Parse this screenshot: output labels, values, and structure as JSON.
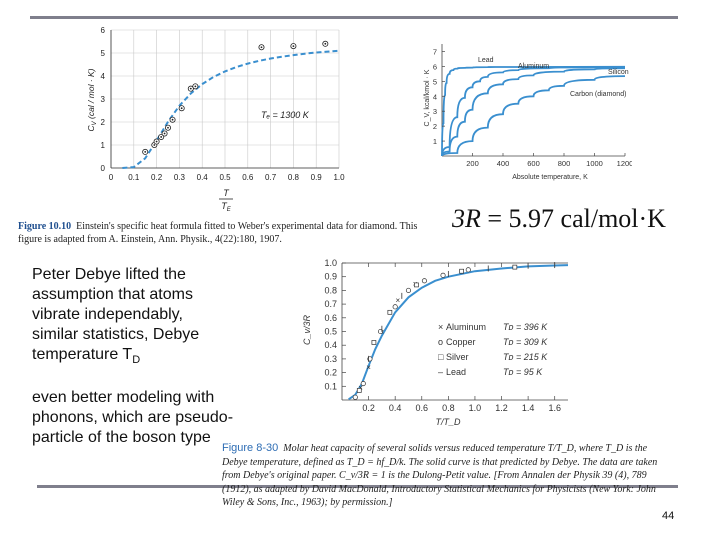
{
  "chart_data": [
    {
      "type": "scatter",
      "id": "einstein",
      "xlabel": "T / T_E",
      "ylabel": "C_V (cal / mol · K)",
      "xlim": [
        0,
        1.0
      ],
      "ylim": [
        0,
        6
      ],
      "xticks": [
        "0",
        "0.1",
        "0.2",
        "0.3",
        "0.4",
        "0.5",
        "0.6",
        "0.7",
        "0.8",
        "0.9",
        "1.0"
      ],
      "yticks": [
        "0",
        "1",
        "2",
        "3",
        "4",
        "5",
        "6"
      ],
      "grid": true,
      "annotation": "T_E = 1300 K",
      "series": [
        {
          "kind": "points",
          "x": [
            0.15,
            0.19,
            0.2,
            0.22,
            0.235,
            0.25,
            0.27,
            0.31,
            0.35,
            0.37,
            0.66,
            0.8,
            0.94
          ],
          "y": [
            0.7,
            1.0,
            1.15,
            1.35,
            1.5,
            1.75,
            2.1,
            2.6,
            3.45,
            3.55,
            5.25,
            5.3,
            5.4
          ]
        },
        {
          "kind": "curve",
          "x": [
            0.05,
            0.1,
            0.15,
            0.2,
            0.25,
            0.3,
            0.35,
            0.4,
            0.45,
            0.5,
            0.55,
            0.6,
            0.65,
            0.7,
            0.75,
            0.8,
            0.85,
            0.9,
            0.95,
            1.0
          ],
          "y": [
            0.0,
            0.04,
            0.42,
            1.19,
            2.01,
            2.71,
            3.24,
            3.65,
            3.96,
            4.2,
            4.39,
            4.54,
            4.66,
            4.76,
            4.84,
            4.91,
            4.97,
            5.02,
            5.06,
            5.1
          ]
        }
      ]
    },
    {
      "type": "line",
      "id": "elements",
      "xlabel": "Absolute temperature, K",
      "ylabel": "C_V, kcal/kmol · K",
      "xlim": [
        0,
        1200
      ],
      "ylim": [
        0,
        7.5
      ],
      "xticks": [
        "200",
        "400",
        "600",
        "800",
        "1000",
        "1200"
      ],
      "yticks": [
        "1",
        "2",
        "3",
        "4",
        "5",
        "6",
        "7"
      ],
      "series": [
        {
          "name": "Lead",
          "x": [
            0,
            10,
            20,
            30,
            50,
            75,
            100,
            150,
            200,
            300,
            500,
            1200
          ],
          "y": [
            0,
            2.2,
            4.1,
            4.9,
            5.5,
            5.75,
            5.85,
            5.9,
            5.92,
            5.95,
            5.96,
            5.97
          ]
        },
        {
          "name": "Aluminum",
          "x": [
            0,
            50,
            100,
            150,
            200,
            250,
            300,
            400,
            500,
            700,
            1000,
            1200
          ],
          "y": [
            0,
            0.6,
            2.6,
            3.9,
            4.6,
            5.0,
            5.3,
            5.6,
            5.75,
            5.88,
            5.94,
            5.96
          ]
        },
        {
          "name": "Silicon",
          "x": [
            0,
            50,
            100,
            150,
            200,
            300,
            400,
            500,
            600,
            800,
            1000,
            1200
          ],
          "y": [
            0,
            0.3,
            1.3,
            2.3,
            3.1,
            4.2,
            4.8,
            5.15,
            5.4,
            5.65,
            5.8,
            5.88
          ]
        },
        {
          "name": "Carbon (diamond)",
          "x": [
            0,
            100,
            200,
            300,
            400,
            500,
            600,
            700,
            800,
            1000,
            1200
          ],
          "y": [
            0,
            0.2,
            1.0,
            1.9,
            2.8,
            3.5,
            4.0,
            4.4,
            4.7,
            5.1,
            5.35
          ]
        }
      ]
    },
    {
      "type": "scatter",
      "id": "debye",
      "xlabel": "T/T_D",
      "ylabel": "C_v/3R",
      "xlim": [
        0,
        1.7
      ],
      "ylim": [
        0,
        1.0
      ],
      "xticks": [
        "0.2",
        "0.4",
        "0.6",
        "0.8",
        "1.0",
        "1.2",
        "1.4",
        "1.6"
      ],
      "yticks": [
        "0.1",
        "0.2",
        "0.3",
        "0.4",
        "0.5",
        "0.6",
        "0.7",
        "0.8",
        "0.9",
        "1.0"
      ],
      "series": [
        {
          "name": "Aluminum",
          "marker": "×",
          "T_D": "T_D = 396 K",
          "x": [
            0.14,
            0.2,
            0.3,
            0.42,
            0.55
          ],
          "y": [
            0.09,
            0.24,
            0.5,
            0.73,
            0.85
          ]
        },
        {
          "name": "Copper",
          "marker": "o",
          "T_D": "T_D = 309 K",
          "x": [
            0.1,
            0.16,
            0.21,
            0.29,
            0.4,
            0.5,
            0.62,
            0.76,
            0.95
          ],
          "y": [
            0.02,
            0.12,
            0.3,
            0.5,
            0.68,
            0.8,
            0.87,
            0.91,
            0.95
          ]
        },
        {
          "name": "Silver",
          "marker": "□",
          "T_D": "T_D = 215 K",
          "x": [
            0.13,
            0.24,
            0.36,
            0.56,
            0.9,
            1.3
          ],
          "y": [
            0.07,
            0.42,
            0.64,
            0.84,
            0.94,
            0.97
          ]
        },
        {
          "name": "Lead",
          "marker": "–",
          "T_D": "T_D = 95 K",
          "x": [
            0.2,
            0.3,
            0.45,
            0.8,
            1.1,
            1.4,
            1.6
          ],
          "y": [
            0.3,
            0.52,
            0.76,
            0.92,
            0.96,
            0.98,
            0.985
          ]
        },
        {
          "name": "curve",
          "kind": "curve",
          "x": [
            0.05,
            0.1,
            0.15,
            0.2,
            0.25,
            0.3,
            0.4,
            0.5,
            0.6,
            0.7,
            0.8,
            1.0,
            1.2,
            1.4,
            1.6,
            1.7
          ],
          "y": [
            0.005,
            0.038,
            0.12,
            0.25,
            0.37,
            0.47,
            0.64,
            0.75,
            0.82,
            0.87,
            0.9,
            0.94,
            0.96,
            0.975,
            0.982,
            0.985
          ]
        }
      ]
    }
  ],
  "text": {
    "fig_einstein_label": "Figure 10.10",
    "fig_einstein_caption": "Einstein's specific heat formula fitted to Weber's experimental data for diamond. This figure is adapted from A. Einstein, Ann. Physik., 4(22):180, 1907.",
    "formula": "3R = 5.97 cal/mol·K",
    "body1": "Peter Debye lifted the assumption that atoms vibrate independably, similar statistics, Debye temperature T",
    "body1_sub": "D",
    "body2": "even better modeling with phonons, which are pseudo-particle of the boson type",
    "fig_debye_label": "Figure 8-30",
    "fig_debye_caption": "Molar heat capacity of several solids versus reduced temperature T/T_D, where T_D is the Debye temperature, defined as T_D = hf_D/k. The solid curve is that predicted by Debye. The data are taken from Debye's original paper. C_v/3R = 1 is the Dulong-Petit value. [From Annalen der Physik 39 (4), 789 (1912), as adapted by David MacDonald, Introductory Statistical Mechanics for Physicists (New York: John Wiley & Sons, Inc., 1963); by permission.]",
    "page_number": "44"
  },
  "colors": {
    "curve": "#3a8fcf",
    "rule": "#7f7f8c",
    "caption_accent": "#2e6db4"
  }
}
